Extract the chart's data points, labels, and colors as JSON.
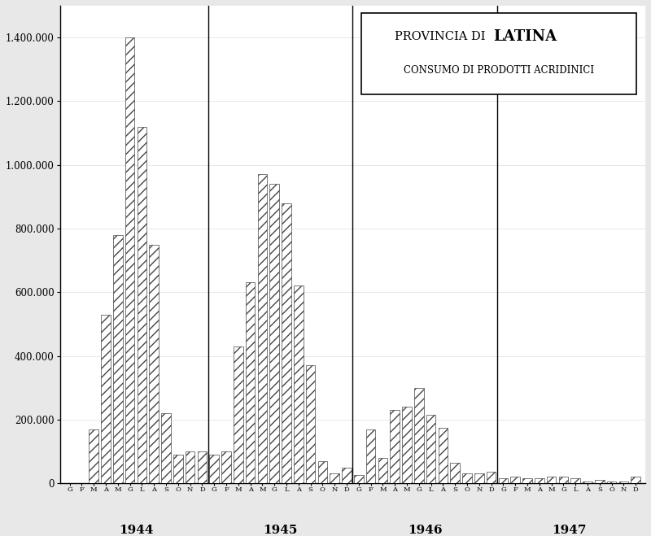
{
  "months_label": [
    "G",
    "F",
    "M",
    "A",
    "M",
    "G",
    "L",
    "A",
    "S",
    "O",
    "N",
    "D",
    "G",
    "F",
    "M",
    "A",
    "M",
    "G",
    "L",
    "A",
    "S",
    "O",
    "N",
    "D",
    "G",
    "F",
    "M",
    "A",
    "M",
    "G",
    "L",
    "A",
    "S",
    "O",
    "N",
    "D",
    "G",
    "F",
    "M",
    "A",
    "M",
    "G",
    "L",
    "A",
    "S",
    "O",
    "N",
    "D"
  ],
  "years": [
    "1944",
    "1945",
    "1946",
    "1947"
  ],
  "year_centers": [
    5.5,
    17.5,
    29.5,
    41.5
  ],
  "year_dividers": [
    11.5,
    23.5,
    35.5
  ],
  "values": [
    0,
    0,
    170000,
    530000,
    780000,
    1400000,
    1120000,
    750000,
    220000,
    90000,
    100000,
    100000,
    90000,
    100000,
    430000,
    630000,
    970000,
    940000,
    880000,
    620000,
    370000,
    70000,
    30000,
    50000,
    25000,
    170000,
    80000,
    230000,
    240000,
    300000,
    215000,
    175000,
    65000,
    30000,
    30000,
    35000,
    15000,
    20000,
    15000,
    15000,
    20000,
    20000,
    15000,
    5000,
    10000,
    5000,
    5000,
    20000
  ],
  "ylim_max": 1500000,
  "yticks": [
    0,
    200000,
    400000,
    600000,
    800000,
    1000000,
    1200000,
    1400000
  ],
  "ytick_labels": [
    "0",
    "200.000",
    "400.000",
    "600.000",
    "800.000",
    "1.000.000",
    "1.200.000",
    "1.400.000"
  ],
  "background_color": "#e8e8e8",
  "plot_bg_color": "#ffffff",
  "title1_normal": "PROVINCIA DI  ",
  "title1_bold": "LATINA",
  "title2": "CONSUMO DI PRODOTTI ACRIDINICI"
}
